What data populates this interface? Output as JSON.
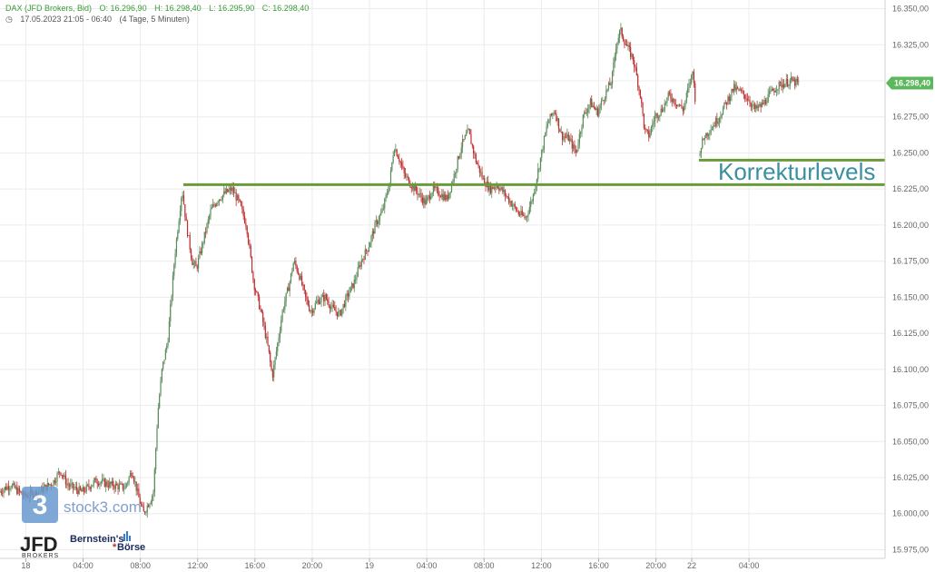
{
  "header": {
    "instrument": "DAX (JFD Brokers, Bid)",
    "open": "O: 16.296,90",
    "high": "H: 16.298,40",
    "low": "L: 16.295,90",
    "close": "C: 16.298,40",
    "range_info": "17.05.2023 21:05 - 06:40",
    "period_info": "(4 Tage, 5 Minuten)"
  },
  "watermark": "stock3.com",
  "broker_logo": {
    "main": "JFD",
    "sub": "BROKERS"
  },
  "partner_logo": {
    "line1": "Bernstein's",
    "line2": "Börse"
  },
  "annotation": "Korrekturlevels",
  "last_price_label": "16.298,40",
  "colors": {
    "up": "#5a8a5a",
    "down": "#c03030",
    "level": "#6a9a3a",
    "price_tag": "#5cb85c",
    "annotation": "#3a8fa0",
    "grid": "#ececec"
  },
  "chart_data": {
    "type": "candlestick",
    "title": "DAX (JFD Brokers, Bid)",
    "y_ticks": [
      "15.975,00",
      "16.000,00",
      "16.025,00",
      "16.050,00",
      "16.075,00",
      "16.100,00",
      "16.125,00",
      "16.150,00",
      "16.175,00",
      "16.200,00",
      "16.225,00",
      "16.250,00",
      "16.275,00",
      "16.300,00",
      "16.325,00",
      "16.350,00"
    ],
    "y_tick_values": [
      15975,
      16000,
      16025,
      16050,
      16075,
      16100,
      16125,
      16150,
      16175,
      16200,
      16225,
      16250,
      16275,
      16300,
      16325,
      16350
    ],
    "ylim": [
      15969,
      16356
    ],
    "x_ticks": [
      {
        "label": "18",
        "t": 0
      },
      {
        "label": "04:00",
        "t": 4
      },
      {
        "label": "08:00",
        "t": 8
      },
      {
        "label": "12:00",
        "t": 12
      },
      {
        "label": "16:00",
        "t": 16
      },
      {
        "label": "20:00",
        "t": 20
      },
      {
        "label": "19",
        "t": 24
      },
      {
        "label": "04:00",
        "t": 28
      },
      {
        "label": "08:00",
        "t": 32
      },
      {
        "label": "12:00",
        "t": 36
      },
      {
        "label": "16:00",
        "t": 40
      },
      {
        "label": "20:00",
        "t": 44
      },
      {
        "label": "22",
        "t": 46.5
      },
      {
        "label": "04:00",
        "t": 50.5
      }
    ],
    "xlim": [
      -1.8,
      60
    ],
    "price_path": [
      [
        -1.8,
        16015
      ],
      [
        -1,
        16020
      ],
      [
        0,
        16012
      ],
      [
        1,
        16015
      ],
      [
        2,
        16022
      ],
      [
        2.5,
        16030
      ],
      [
        3,
        16020
      ],
      [
        4,
        16015
      ],
      [
        5,
        16023
      ],
      [
        6,
        16020
      ],
      [
        7,
        16018
      ],
      [
        7.5,
        16030
      ],
      [
        8,
        16010
      ],
      [
        8.3,
        16000
      ],
      [
        8.8,
        16010
      ],
      [
        9,
        16015
      ],
      [
        9.3,
        16070
      ],
      [
        9.6,
        16100
      ],
      [
        10,
        16120
      ],
      [
        10.5,
        16180
      ],
      [
        11,
        16225
      ],
      [
        11.3,
        16200
      ],
      [
        11.7,
        16175
      ],
      [
        12,
        16170
      ],
      [
        12.5,
        16190
      ],
      [
        13,
        16210
      ],
      [
        13.5,
        16218
      ],
      [
        14,
        16222
      ],
      [
        14.5,
        16225
      ],
      [
        15,
        16215
      ],
      [
        15.5,
        16200
      ],
      [
        16,
        16160
      ],
      [
        16.5,
        16140
      ],
      [
        17,
        16115
      ],
      [
        17.3,
        16095
      ],
      [
        17.7,
        16120
      ],
      [
        18,
        16140
      ],
      [
        18.5,
        16160
      ],
      [
        18.8,
        16175
      ],
      [
        19.2,
        16165
      ],
      [
        19.6,
        16150
      ],
      [
        20,
        16140
      ],
      [
        20.5,
        16148
      ],
      [
        21,
        16150
      ],
      [
        21.5,
        16142
      ],
      [
        22,
        16138
      ],
      [
        22.5,
        16150
      ],
      [
        23,
        16160
      ],
      [
        23.5,
        16175
      ],
      [
        24,
        16185
      ],
      [
        24.5,
        16200
      ],
      [
        25,
        16210
      ],
      [
        25.5,
        16230
      ],
      [
        25.8,
        16255
      ],
      [
        26.2,
        16245
      ],
      [
        26.5,
        16235
      ],
      [
        27,
        16228
      ],
      [
        27.5,
        16222
      ],
      [
        28,
        16215
      ],
      [
        28.5,
        16225
      ],
      [
        29,
        16222
      ],
      [
        29.5,
        16218
      ],
      [
        30,
        16235
      ],
      [
        30.5,
        16255
      ],
      [
        31,
        16265
      ],
      [
        31.5,
        16245
      ],
      [
        32,
        16232
      ],
      [
        32.5,
        16225
      ],
      [
        33,
        16228
      ],
      [
        33.5,
        16222
      ],
      [
        34,
        16215
      ],
      [
        34.5,
        16208
      ],
      [
        35,
        16205
      ],
      [
        35.5,
        16220
      ],
      [
        36,
        16245
      ],
      [
        36.5,
        16270
      ],
      [
        37,
        16280
      ],
      [
        37.5,
        16262
      ],
      [
        38,
        16260
      ],
      [
        38.5,
        16250
      ],
      [
        39,
        16275
      ],
      [
        39.5,
        16285
      ],
      [
        40,
        16278
      ],
      [
        40.5,
        16290
      ],
      [
        41,
        16300
      ],
      [
        41.3,
        16325
      ],
      [
        41.6,
        16335
      ],
      [
        42,
        16325
      ],
      [
        42.5,
        16315
      ],
      [
        43,
        16290
      ],
      [
        43.3,
        16265
      ],
      [
        43.6,
        16262
      ],
      [
        44,
        16275
      ],
      [
        44.5,
        16280
      ],
      [
        45,
        16290
      ],
      [
        45.5,
        16285
      ],
      [
        46,
        16280
      ],
      [
        46.3,
        16293
      ],
      [
        46.7,
        16308
      ],
      [
        47,
        16248
      ],
      [
        47.5,
        16262
      ],
      [
        48,
        16268
      ],
      [
        48.5,
        16275
      ],
      [
        49,
        16285
      ],
      [
        49.5,
        16295
      ],
      [
        50,
        16292
      ],
      [
        50.5,
        16288
      ],
      [
        51,
        16280
      ],
      [
        51.5,
        16283
      ],
      [
        52,
        16290
      ],
      [
        52.5,
        16296
      ],
      [
        53,
        16298
      ],
      [
        53.5,
        16300
      ],
      [
        54,
        16298
      ]
    ],
    "levels": [
      {
        "value": 16228,
        "t_start": 11.0,
        "t_end": 60
      },
      {
        "value": 16245,
        "t_start": 47.0,
        "t_end": 60
      }
    ],
    "last_price": 16298.4
  }
}
